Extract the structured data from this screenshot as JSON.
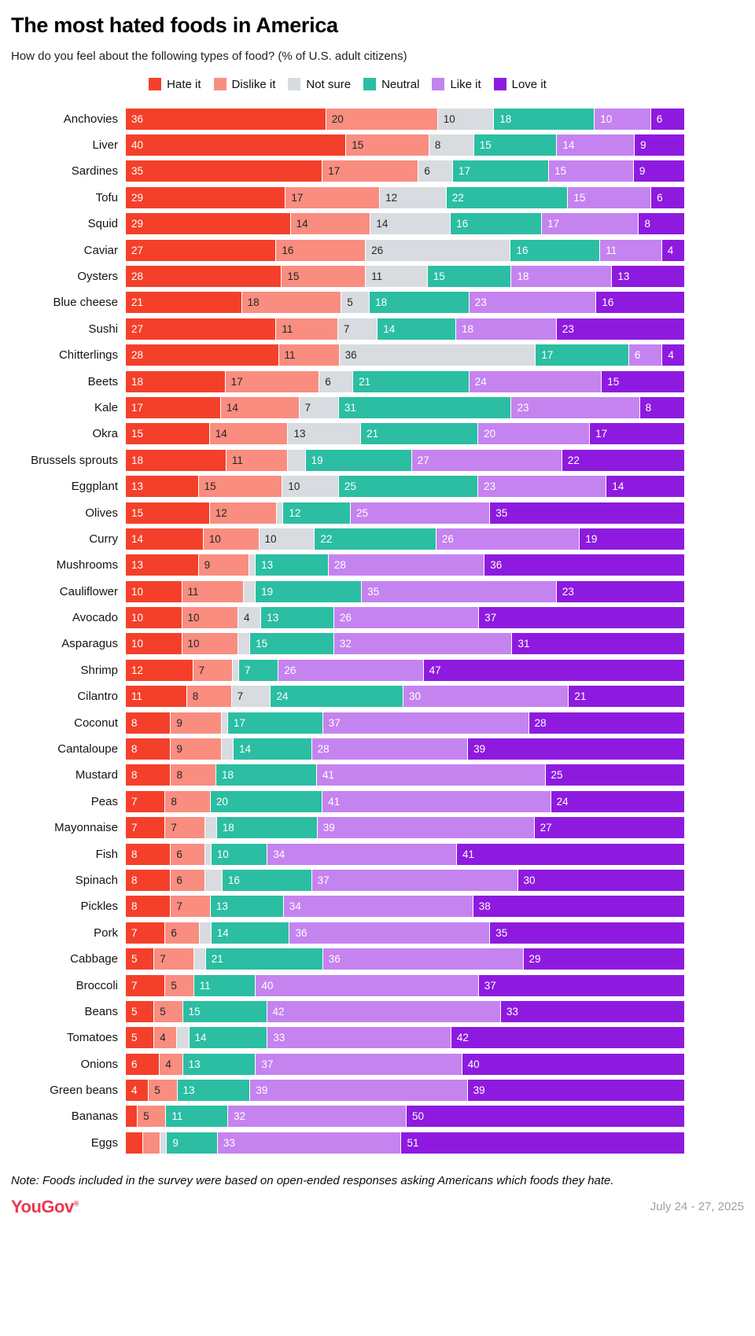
{
  "header": {
    "title": "The most hated foods in America",
    "subtitle": "How do you feel about the following types of food? (% of U.S. adult citizens)"
  },
  "legend": [
    {
      "label": "Hate it",
      "color": "#f4402a"
    },
    {
      "label": "Dislike it",
      "color": "#f98d80"
    },
    {
      "label": "Not sure",
      "color": "#d8dbe0"
    },
    {
      "label": "Neutral",
      "color": "#2bbea2"
    },
    {
      "label": "Like it",
      "color": "#c583f0"
    },
    {
      "label": "Love it",
      "color": "#8e1adf"
    }
  ],
  "chart_data": {
    "type": "bar",
    "stacked": true,
    "orientation": "horizontal",
    "title": "The most hated foods in America",
    "subtitle": "How do you feel about the following types of food? (% of U.S. adult citizens)",
    "xlim": [
      0,
      100
    ],
    "grid": false,
    "legend_position": "top",
    "value_label_rule": "percent shown inside left edge of segment; hidden when value < 4",
    "categories": [
      "Anchovies",
      "Liver",
      "Sardines",
      "Tofu",
      "Squid",
      "Caviar",
      "Oysters",
      "Blue cheese",
      "Sushi",
      "Chitterlings",
      "Beets",
      "Kale",
      "Okra",
      "Brussels sprouts",
      "Eggplant",
      "Olives",
      "Curry",
      "Mushrooms",
      "Cauliflower",
      "Avocado",
      "Asparagus",
      "Shrimp",
      "Cilantro",
      "Coconut",
      "Cantaloupe",
      "Mustard",
      "Peas",
      "Mayonnaise",
      "Fish",
      "Spinach",
      "Pickles",
      "Pork",
      "Cabbage",
      "Broccoli",
      "Beans",
      "Tomatoes",
      "Onions",
      "Green beans",
      "Bananas",
      "Eggs"
    ],
    "series": [
      {
        "name": "Hate it",
        "values": [
          36,
          40,
          35,
          29,
          29,
          27,
          28,
          21,
          27,
          28,
          18,
          17,
          15,
          18,
          13,
          15,
          14,
          13,
          10,
          10,
          10,
          12,
          11,
          8,
          8,
          8,
          7,
          7,
          8,
          8,
          8,
          7,
          5,
          7,
          5,
          5,
          6,
          4,
          2,
          3
        ]
      },
      {
        "name": "Dislike it",
        "values": [
          20,
          15,
          17,
          17,
          14,
          16,
          15,
          18,
          11,
          11,
          17,
          14,
          14,
          11,
          15,
          12,
          10,
          9,
          11,
          10,
          10,
          7,
          8,
          9,
          9,
          8,
          8,
          7,
          6,
          6,
          7,
          6,
          7,
          5,
          5,
          4,
          4,
          5,
          5,
          3
        ]
      },
      {
        "name": "Not sure",
        "values": [
          10,
          8,
          6,
          12,
          14,
          26,
          11,
          5,
          7,
          36,
          6,
          7,
          13,
          3,
          10,
          1,
          10,
          1,
          2,
          4,
          2,
          1,
          7,
          1,
          2,
          0,
          0,
          2,
          1,
          3,
          0,
          2,
          2,
          0,
          0,
          2,
          0,
          0,
          0,
          1
        ]
      },
      {
        "name": "Neutral",
        "values": [
          18,
          15,
          17,
          22,
          16,
          16,
          15,
          18,
          14,
          17,
          21,
          31,
          21,
          19,
          25,
          12,
          22,
          13,
          19,
          13,
          15,
          7,
          24,
          17,
          14,
          18,
          20,
          18,
          10,
          16,
          13,
          14,
          21,
          11,
          15,
          14,
          13,
          13,
          11,
          9
        ]
      },
      {
        "name": "Like it",
        "values": [
          10,
          14,
          15,
          15,
          17,
          11,
          18,
          23,
          18,
          6,
          24,
          23,
          20,
          27,
          23,
          25,
          26,
          28,
          35,
          26,
          32,
          26,
          30,
          37,
          28,
          41,
          41,
          39,
          34,
          37,
          34,
          36,
          36,
          40,
          42,
          33,
          37,
          39,
          32,
          33
        ]
      },
      {
        "name": "Love it",
        "values": [
          6,
          9,
          9,
          6,
          8,
          4,
          13,
          16,
          23,
          4,
          15,
          8,
          17,
          22,
          14,
          35,
          19,
          36,
          23,
          37,
          31,
          47,
          21,
          28,
          39,
          25,
          24,
          27,
          41,
          30,
          38,
          35,
          29,
          37,
          33,
          42,
          40,
          39,
          50,
          51
        ]
      }
    ]
  },
  "footer": {
    "note": "Note: Foods included in the survey were based on open-ended responses asking Americans which foods they hate.",
    "logo": "YouGov",
    "logo_mark": "®",
    "logo_color": "#e8394f",
    "date": "July 24 - 27, 2025"
  }
}
